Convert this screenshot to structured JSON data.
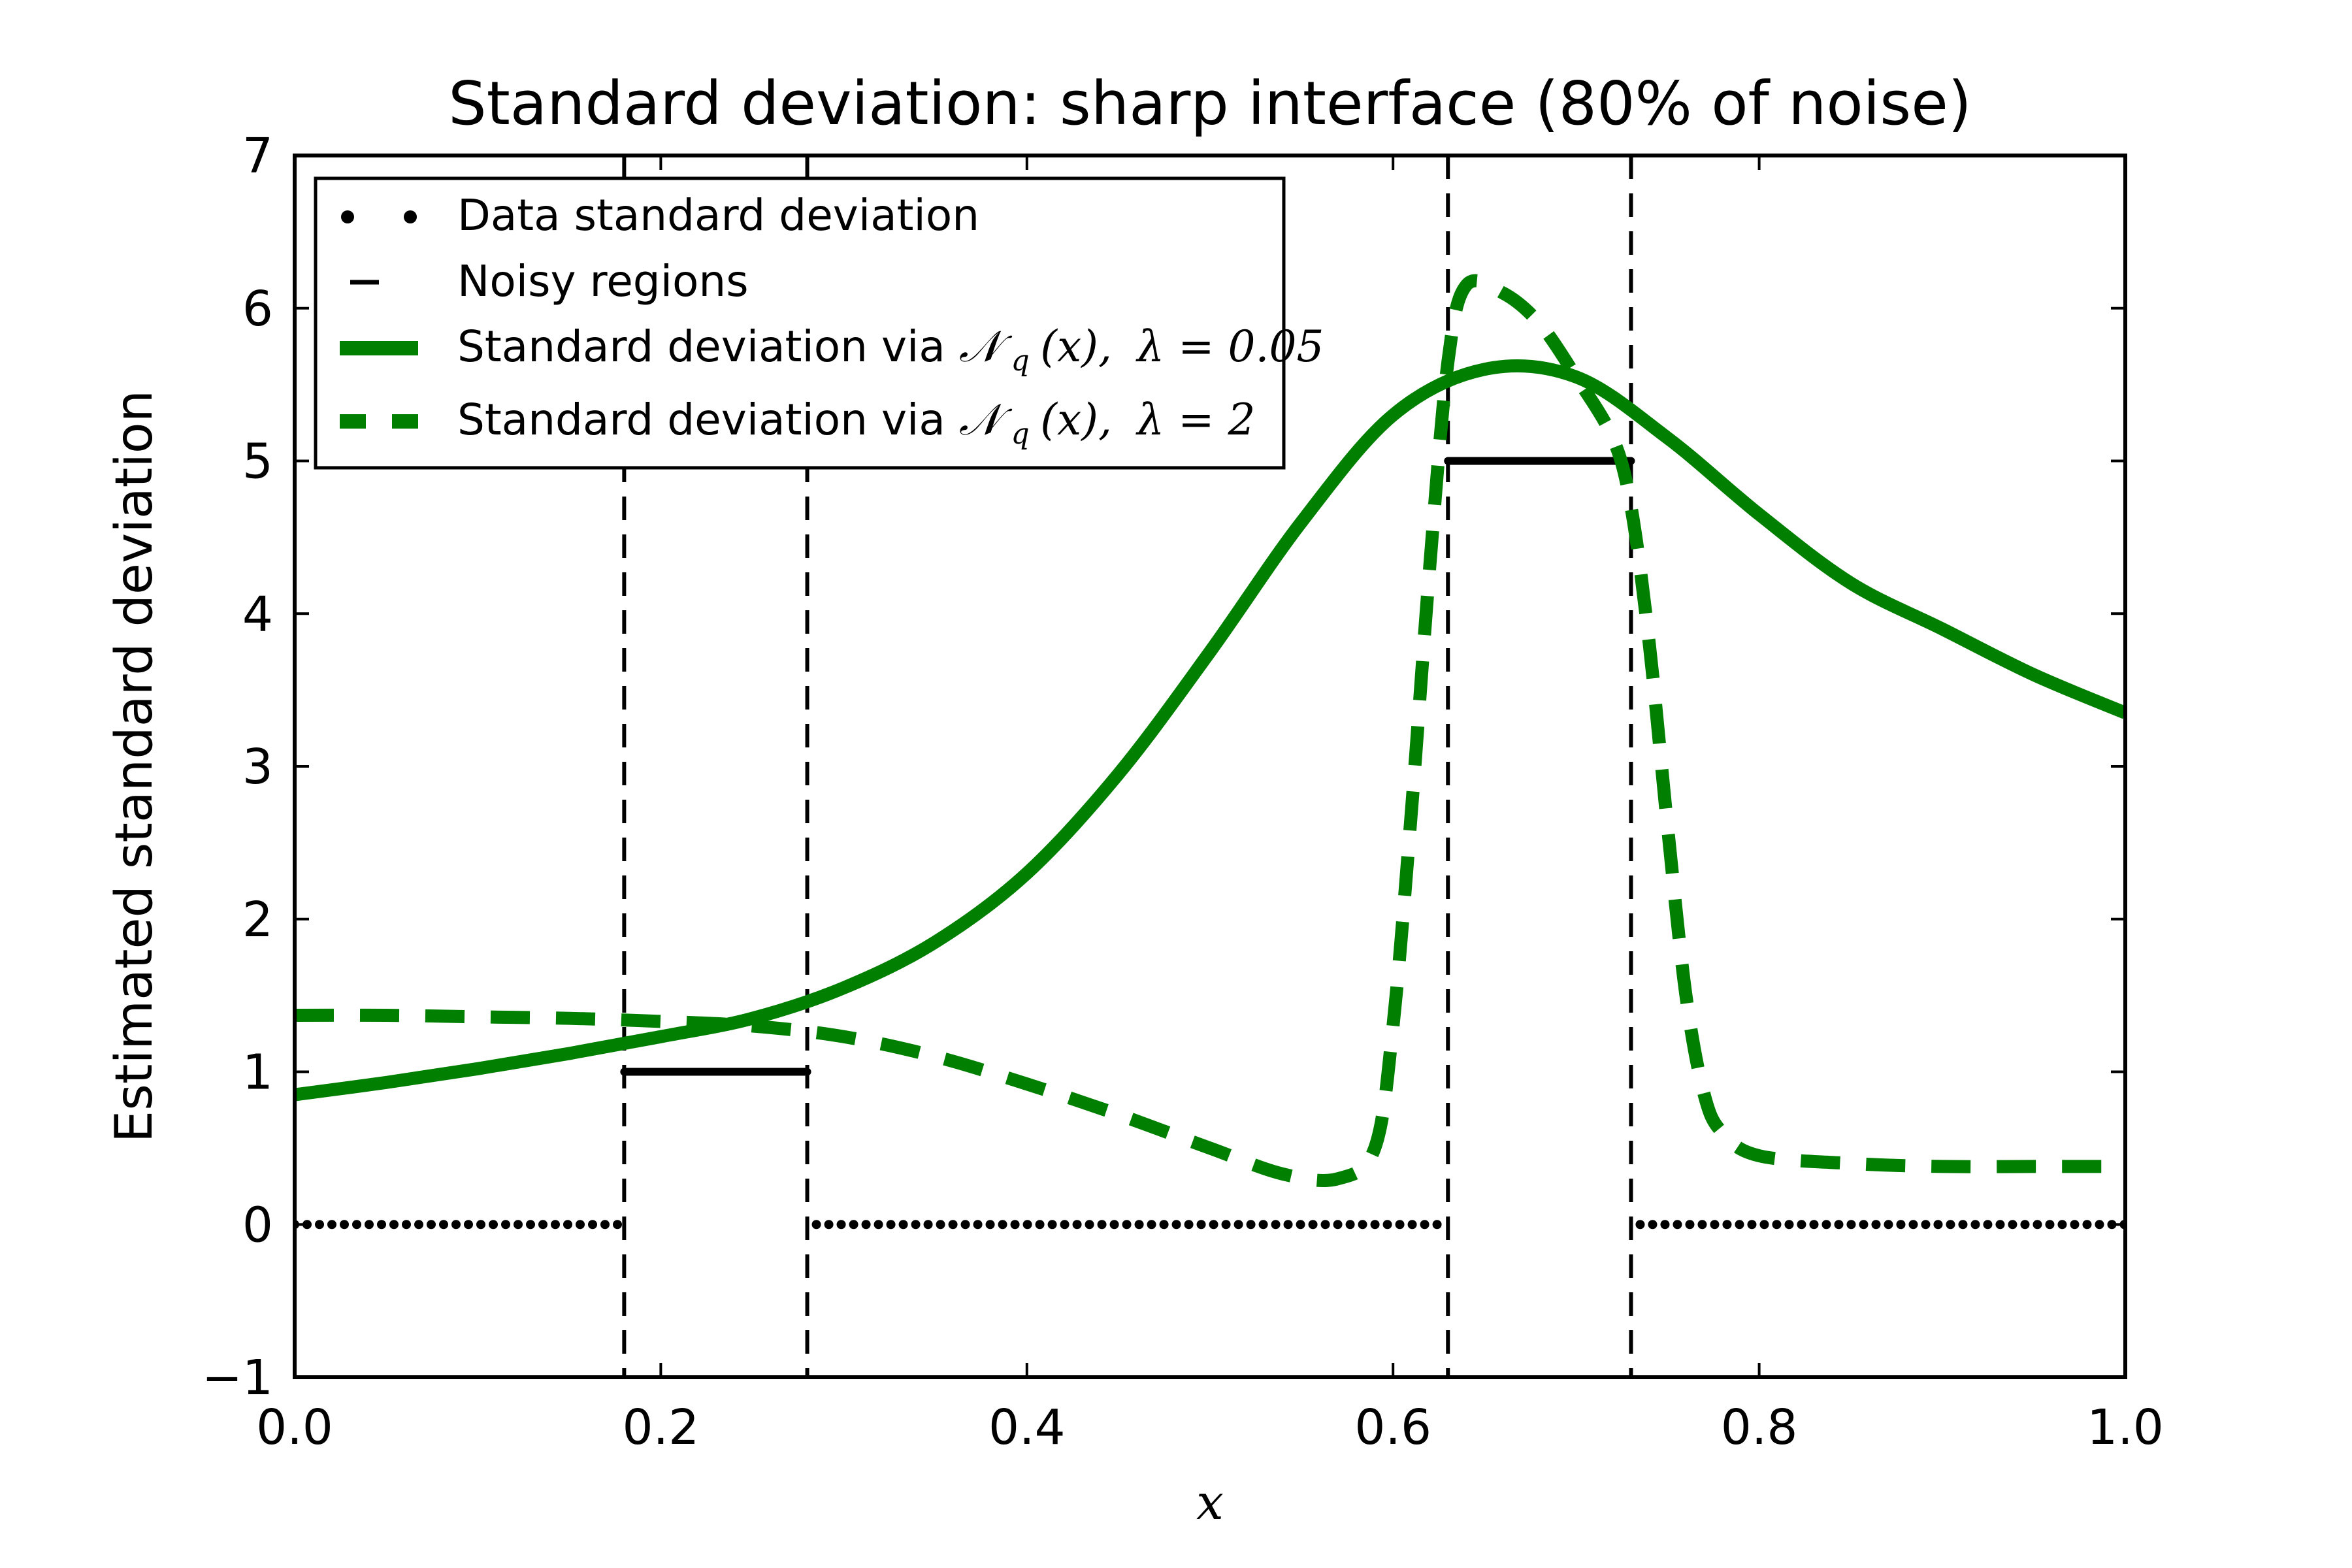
{
  "chart_data": {
    "type": "line",
    "title": "Standard deviation: sharp interface (80% of noise)",
    "xlabel": "x",
    "ylabel": "Estimated standard deviation",
    "xlim": [
      0.0,
      1.0
    ],
    "ylim": [
      -1,
      7
    ],
    "x_ticks": [
      0.0,
      0.2,
      0.4,
      0.6,
      0.8,
      1.0
    ],
    "x_tick_labels": [
      "0.0",
      "0.2",
      "0.4",
      "0.6",
      "0.8",
      "1.0"
    ],
    "y_ticks": [
      -1,
      0,
      1,
      2,
      3,
      4,
      5,
      6,
      7
    ],
    "y_tick_labels": [
      "−1",
      "0",
      "1",
      "2",
      "3",
      "4",
      "5",
      "6",
      "7"
    ],
    "grid": false,
    "legend_position": "top-left",
    "colors": {
      "green": "#007f00",
      "black": "#000000"
    },
    "noisy_region_boundaries": [
      0.18,
      0.28,
      0.63,
      0.73
    ],
    "series": [
      {
        "name": "Data standard deviation",
        "style": "dotted",
        "color": "#000000",
        "segments": [
          {
            "x": [
              0.0,
              0.18
            ],
            "y": [
              0,
              0
            ]
          },
          {
            "x": [
              0.285,
              0.625
            ],
            "y": [
              0,
              0
            ]
          },
          {
            "x": [
              0.735,
              1.0
            ],
            "y": [
              0,
              0
            ]
          }
        ]
      },
      {
        "name": "Noisy regions",
        "style": "solid-black",
        "color": "#000000",
        "segments": [
          {
            "x": [
              0.18,
              0.28
            ],
            "y": [
              1,
              1
            ]
          },
          {
            "x": [
              0.63,
              0.73
            ],
            "y": [
              5,
              5
            ]
          }
        ]
      },
      {
        "name": "Standard deviation via N_q(x), λ = 0.05",
        "style": "solid",
        "color": "#007f00",
        "x": [
          0.0,
          0.05,
          0.1,
          0.15,
          0.2,
          0.25,
          0.3,
          0.35,
          0.4,
          0.45,
          0.5,
          0.55,
          0.6,
          0.65,
          0.7,
          0.75,
          0.8,
          0.85,
          0.9,
          0.95,
          1.0
        ],
        "y": [
          0.85,
          0.93,
          1.02,
          1.12,
          1.23,
          1.35,
          1.55,
          1.85,
          2.3,
          2.95,
          3.75,
          4.6,
          5.3,
          5.6,
          5.55,
          5.15,
          4.65,
          4.2,
          3.9,
          3.6,
          3.35
        ]
      },
      {
        "name": "Standard deviation via N_q(x), λ = 2",
        "style": "dashed",
        "color": "#007f00",
        "x": [
          0.0,
          0.05,
          0.1,
          0.15,
          0.2,
          0.25,
          0.3,
          0.35,
          0.4,
          0.45,
          0.5,
          0.54,
          0.57,
          0.59,
          0.6,
          0.61,
          0.62,
          0.63,
          0.64,
          0.66,
          0.68,
          0.7,
          0.72,
          0.73,
          0.74,
          0.75,
          0.76,
          0.77,
          0.78,
          0.8,
          0.85,
          0.9,
          0.95,
          1.0
        ],
        "y": [
          1.37,
          1.37,
          1.36,
          1.35,
          1.33,
          1.3,
          1.23,
          1.1,
          0.92,
          0.72,
          0.5,
          0.33,
          0.3,
          0.5,
          1.3,
          2.7,
          4.3,
          5.65,
          6.15,
          6.1,
          5.9,
          5.55,
          5.15,
          4.7,
          3.8,
          2.6,
          1.5,
          0.85,
          0.6,
          0.45,
          0.4,
          0.38,
          0.38,
          0.38
        ]
      }
    ],
    "legend": [
      {
        "label": "Data standard deviation",
        "marker": "dots"
      },
      {
        "label": "Noisy regions",
        "marker": "short-dash"
      },
      {
        "label_text": "Standard deviation via ",
        "label_math": "𝒩",
        "label_sub": "q",
        "label_arg": "(x),",
        "label_lambda": "λ = 0.05",
        "marker": "solid-green"
      },
      {
        "label_text": "Standard deviation via ",
        "label_math": "𝒩",
        "label_sub": "q",
        "label_arg": "(x),",
        "label_lambda": "λ = 2",
        "marker": "dashed-green"
      }
    ]
  }
}
